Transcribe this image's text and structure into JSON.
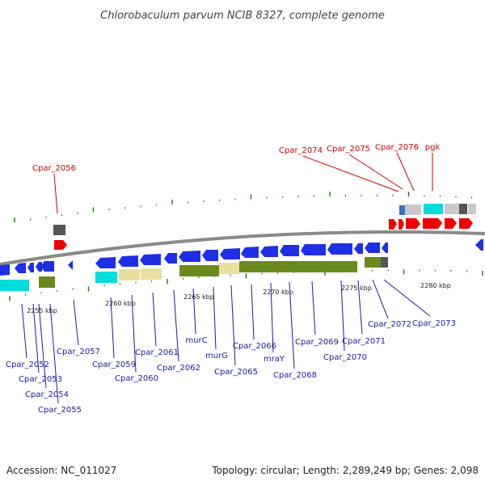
{
  "title": "Chlorobaculum parvum NCIB 8327, complete genome",
  "footer": {
    "accession": "Accession: NC_011027",
    "summary": "Topology: circular; Length: 2,289,249 bp; Genes: 2,098"
  },
  "colors": {
    "backbone": "#8a8a8a",
    "tick": "#2e7d1e",
    "blue_gene": "#1f2fe6",
    "red_gene": "#ee0000",
    "cyan_gene": "#00dcdc",
    "khaki_gene": "#e8e0a0",
    "olive_gene": "#6b8a1e",
    "gray_gene": "#c8c8c8",
    "dark_gene": "#555555",
    "label_red": "#cc0000",
    "label_blue": "#1a1aa6"
  },
  "scale": [
    {
      "label": "2255 kbp"
    },
    {
      "label": "2260 kbp"
    },
    {
      "label": "2265 kbp"
    },
    {
      "label": "2270 kbp"
    },
    {
      "label": "2275 kbp"
    },
    {
      "label": "2280 kbp"
    }
  ],
  "top_genes": [
    {
      "label": "Cpar_2056"
    },
    {
      "label": "Cpar_2074"
    },
    {
      "label": "Cpar_2075"
    },
    {
      "label": "Cpar_2076"
    },
    {
      "label": "pgk"
    }
  ],
  "bottom_genes": [
    {
      "label": "Cpar_2052"
    },
    {
      "label": "Cpar_2053"
    },
    {
      "label": "Cpar_2054"
    },
    {
      "label": "Cpar_2055"
    },
    {
      "label": "Cpar_2057"
    },
    {
      "label": "Cpar_2059"
    },
    {
      "label": "Cpar_2060"
    },
    {
      "label": "Cpar_2061"
    },
    {
      "label": "Cpar_2062"
    },
    {
      "label": "murC"
    },
    {
      "label": "murG"
    },
    {
      "label": "Cpar_2065"
    },
    {
      "label": "Cpar_2066"
    },
    {
      "label": "mraY"
    },
    {
      "label": "Cpar_2068"
    },
    {
      "label": "Cpar_2069"
    },
    {
      "label": "Cpar_2070"
    },
    {
      "label": "Cpar_2071"
    },
    {
      "label": "Cpar_2072"
    },
    {
      "label": "Cpar_2073"
    }
  ]
}
